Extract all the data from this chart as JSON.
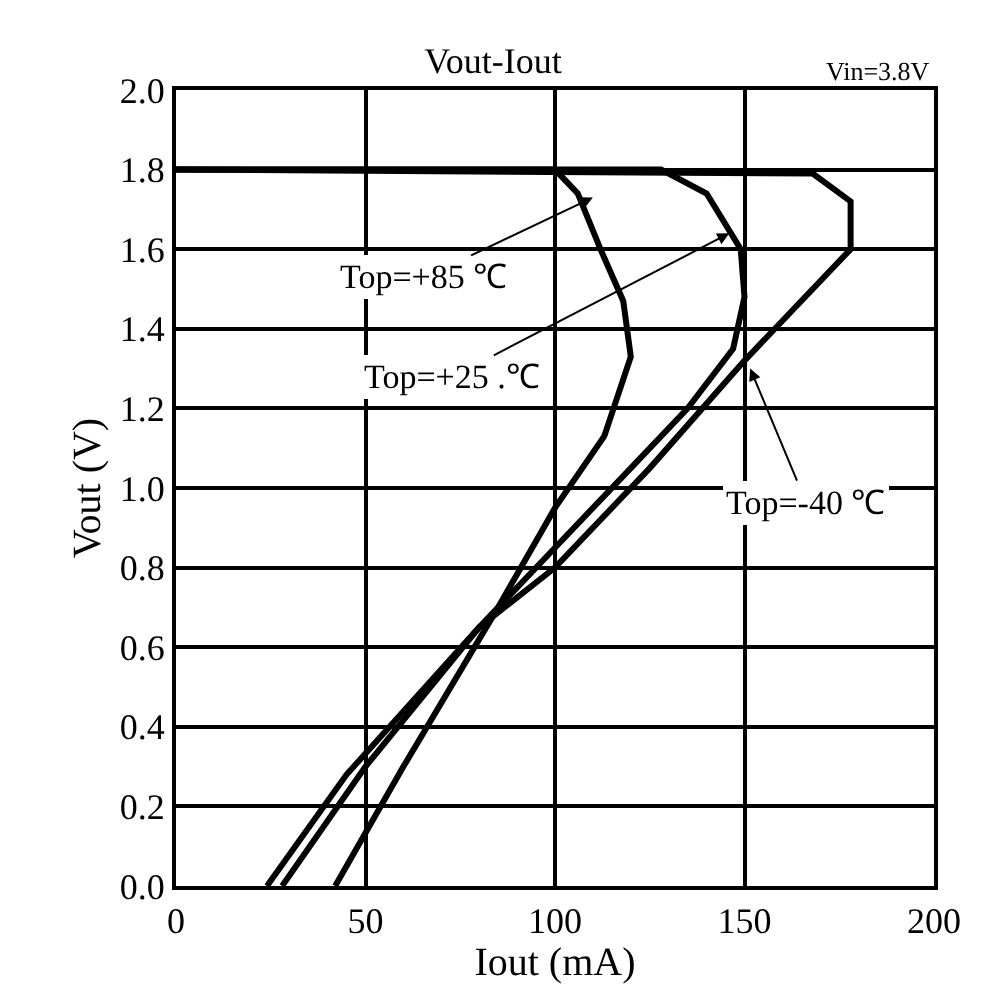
{
  "chart_data": {
    "type": "line",
    "title": "Vout-Iout",
    "xlabel": "Iout (mA)",
    "ylabel": "Vout (V)",
    "xlim": [
      0,
      200
    ],
    "xticks": [
      0,
      50,
      100,
      150,
      200
    ],
    "ylim": [
      0,
      2.0
    ],
    "yticks": [
      {
        "value": 0,
        "label": "0.0"
      },
      {
        "value": 0.2,
        "label": "0.2"
      },
      {
        "value": 0.4,
        "label": "0.4"
      },
      {
        "value": 0.6,
        "label": "0.6"
      },
      {
        "value": 0.8,
        "label": "0.8"
      },
      {
        "value": 1.0,
        "label": "1.0"
      },
      {
        "value": 1.2,
        "label": "1.2"
      },
      {
        "value": 1.4,
        "label": "1.4"
      },
      {
        "value": 1.6,
        "label": "1.6"
      },
      {
        "value": 1.8,
        "label": "1.8"
      },
      {
        "value": 2.0,
        "label": "2.0"
      }
    ],
    "grid": true,
    "marker": "none",
    "line_style": "solid",
    "series": [
      {
        "color": "#000000",
        "x": [
          42,
          60,
          85,
          100,
          113,
          120,
          118,
          112,
          106,
          100,
          0
        ],
        "values": [
          0,
          0.3,
          0.7,
          0.95,
          1.13,
          1.33,
          1.47,
          1.6,
          1.74,
          1.8,
          1.8
        ]
      },
      {
        "color": "#000000",
        "x": [
          28,
          50,
          80,
          100,
          120,
          135,
          147,
          150,
          149,
          140,
          128,
          0
        ],
        "values": [
          0,
          0.3,
          0.65,
          0.85,
          1.05,
          1.2,
          1.35,
          1.48,
          1.6,
          1.74,
          1.8,
          1.8
        ]
      },
      {
        "color": "#000000",
        "x": [
          24,
          45,
          80,
          100,
          125,
          150,
          178,
          178,
          168,
          0
        ],
        "values": [
          0,
          0.28,
          0.65,
          0.8,
          1.05,
          1.32,
          1.6,
          1.72,
          1.79,
          1.8
        ]
      }
    ],
    "annotations": [
      {
        "text": "Top=+85 ℃",
        "x": 110,
        "y": 1.73
      },
      {
        "text": "Top=+25 .℃",
        "x": 146,
        "y": 1.64
      },
      {
        "text": "Top=-40 ℃",
        "x": 151.5,
        "y": 1.3
      },
      "Vin=3.8V"
    ]
  }
}
